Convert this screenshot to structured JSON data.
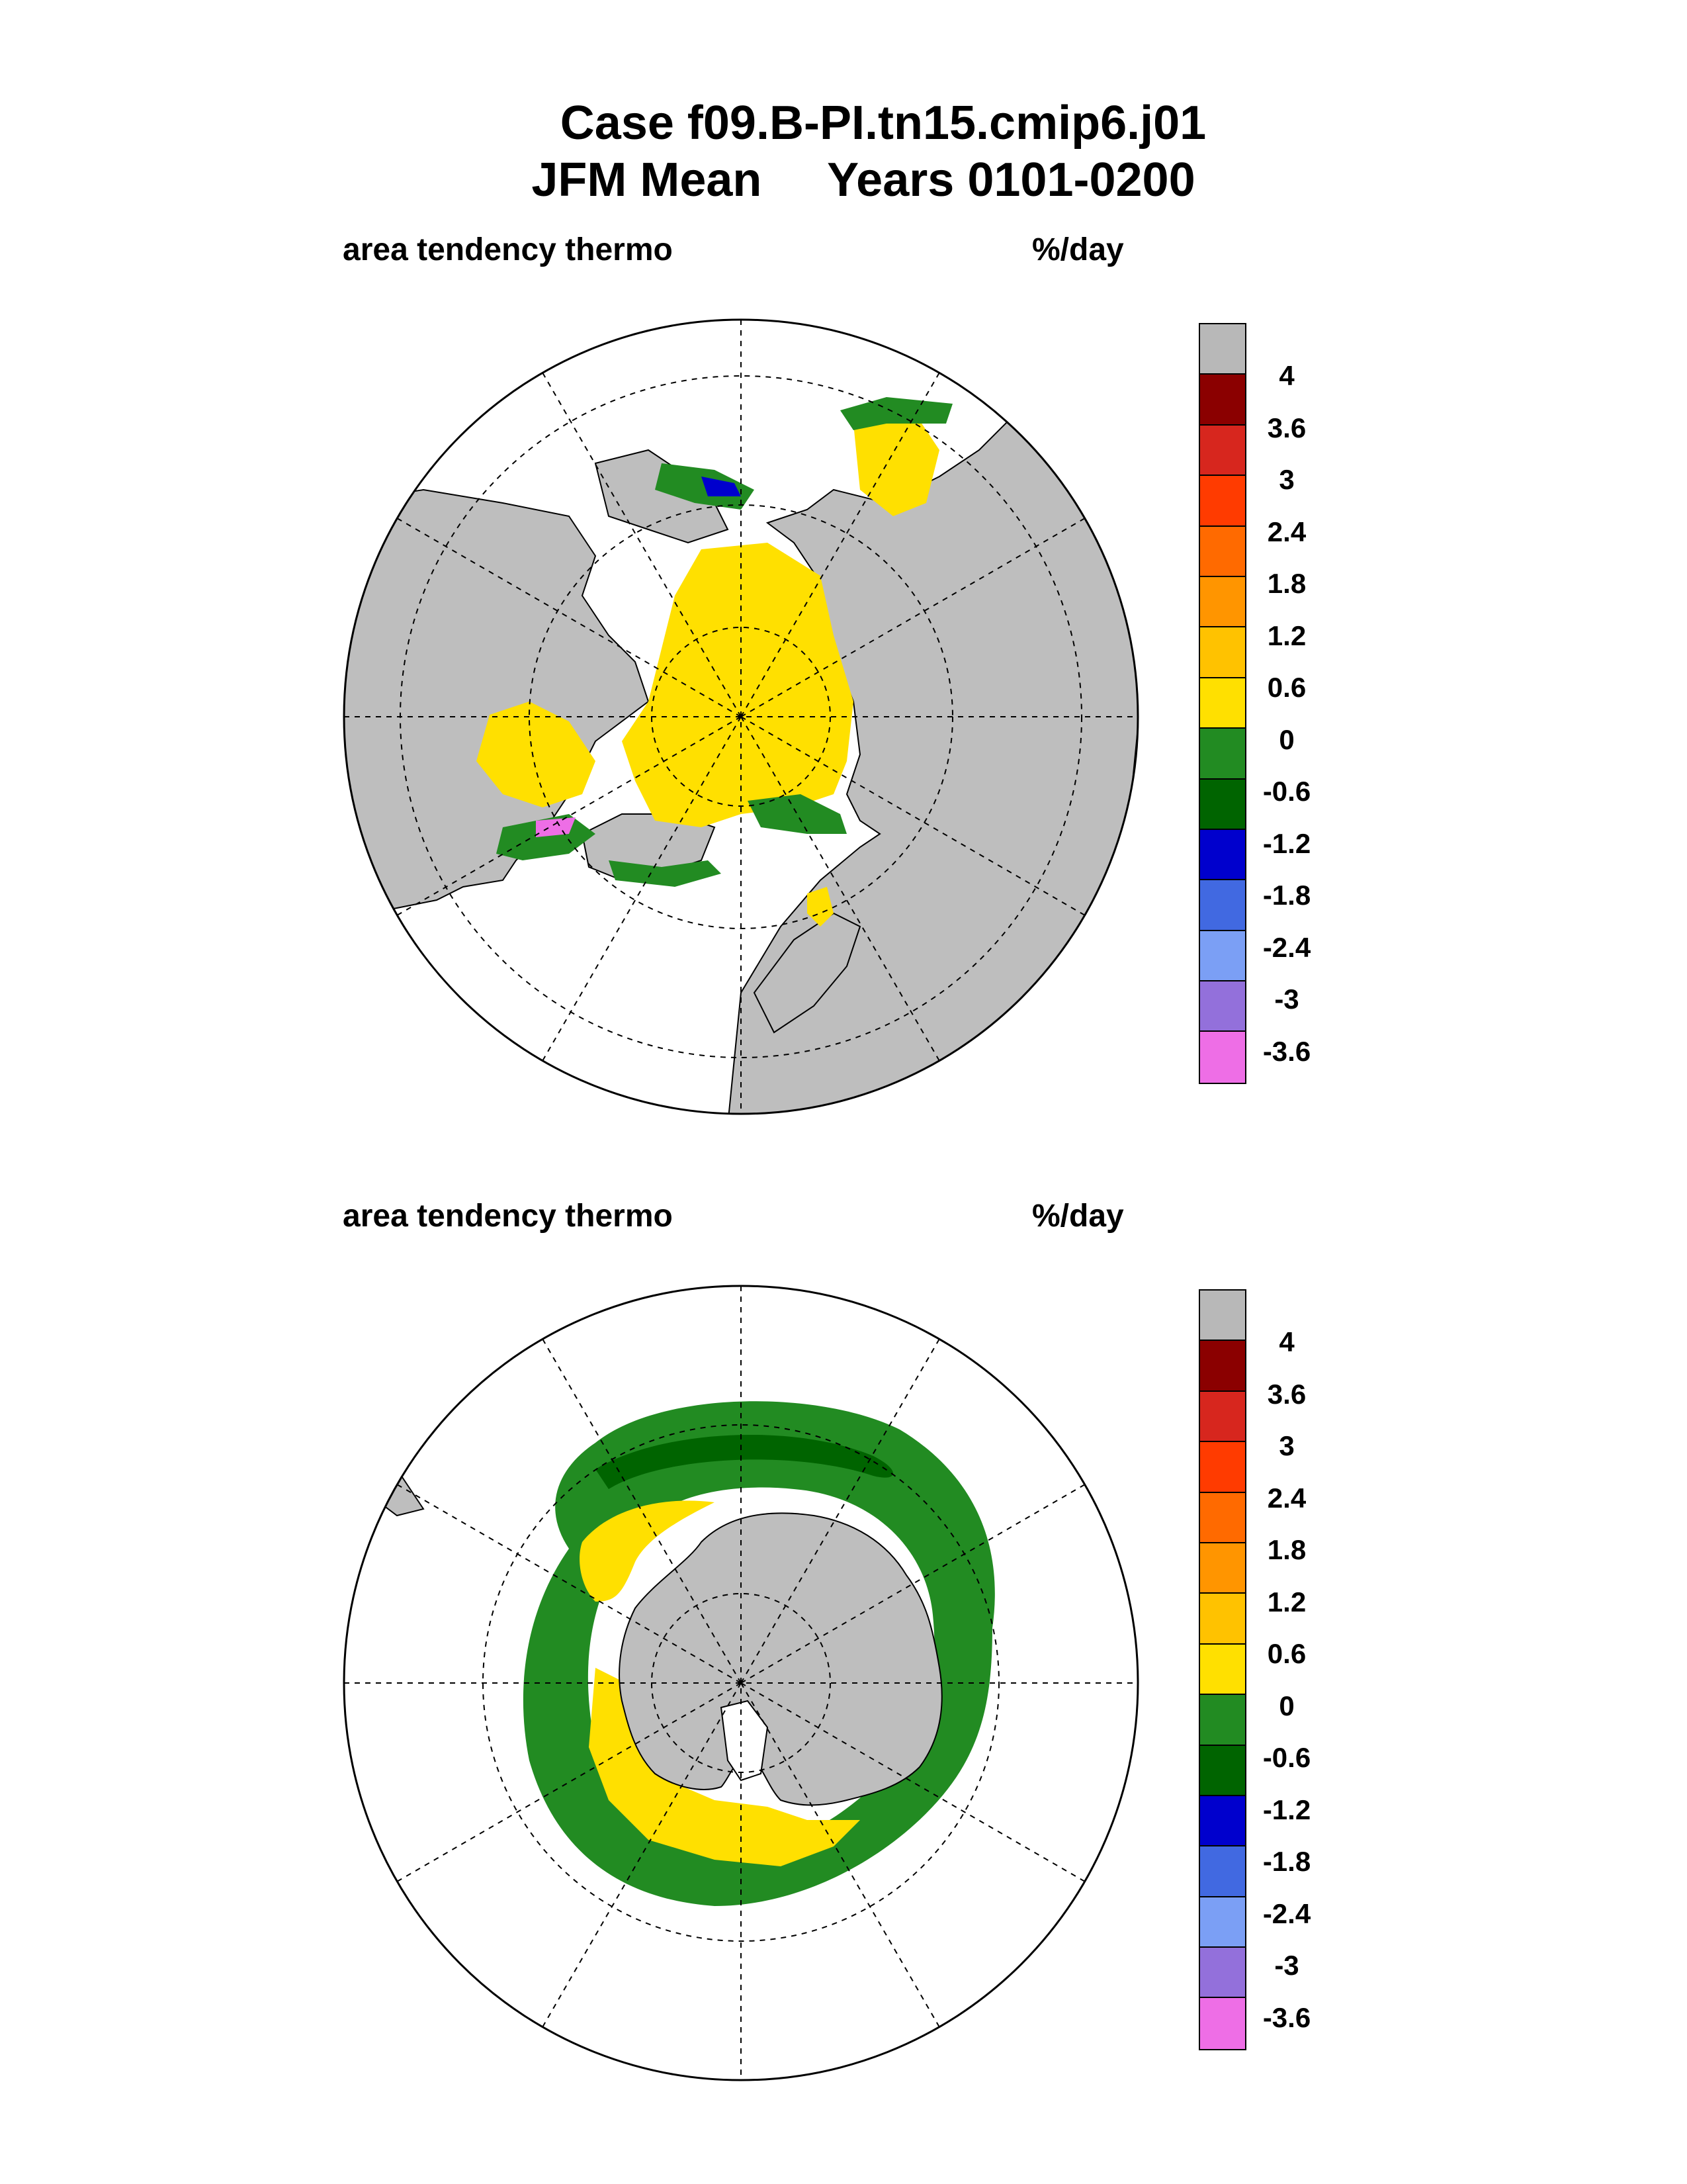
{
  "title": {
    "line1": "Case f09.B-PI.tn15.cmip6.j01",
    "line2": "JFM Mean     Years 0101-0200"
  },
  "panels": [
    {
      "id": "north",
      "label_left": "area tendency thermo",
      "label_right": "%/day",
      "hemisphere": "northern",
      "projection": "polar stereographic"
    },
    {
      "id": "south",
      "label_left": "area tendency thermo",
      "label_right": "%/day",
      "hemisphere": "southern",
      "projection": "polar stereographic"
    }
  ],
  "colorbar": {
    "colors": [
      "#b8b8b8",
      "#8b0000",
      "#d7261e",
      "#ff3b00",
      "#ff6a00",
      "#ff9500",
      "#ffc200",
      "#ffe000",
      "#228b22",
      "#006400",
      "#0000cd",
      "#4169e1",
      "#7b9ff5",
      "#9370db",
      "#ee6ee6"
    ],
    "labels": [
      "4",
      "3.6",
      "3",
      "2.4",
      "1.8",
      "1.2",
      "0.6",
      "0",
      "-0.6",
      "-1.2",
      "-1.8",
      "-2.4",
      "-3",
      "-3.6"
    ]
  },
  "legend_colors": {
    "land": "#bebebe",
    "ocean": "#ffffff"
  }
}
